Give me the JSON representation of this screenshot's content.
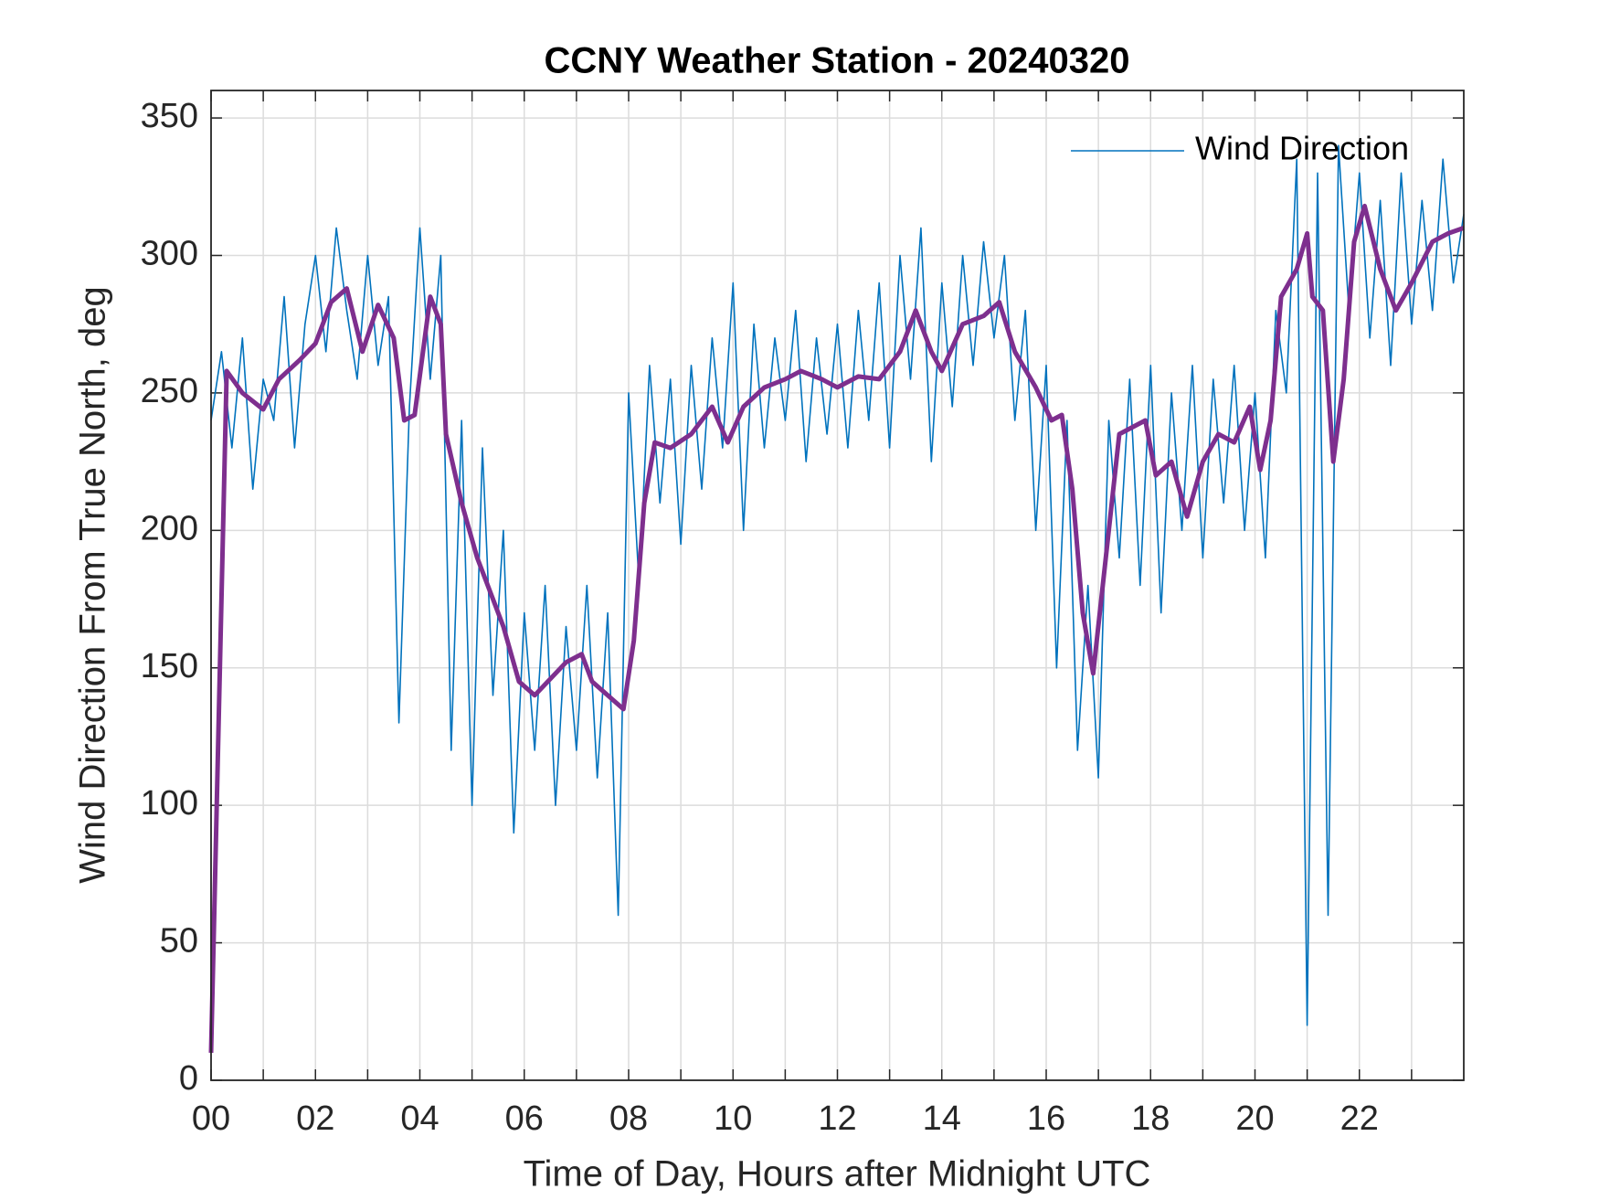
{
  "chart_data": {
    "type": "line",
    "title": "CCNY Weather Station - 20240320",
    "x_label": "Time of Day, Hours after Midnight UTC",
    "y_label": "Wind Direction From True North, deg",
    "xlim": [
      0,
      24
    ],
    "ylim": [
      0,
      360
    ],
    "xticks": [
      {
        "value": 0,
        "label": "00"
      },
      {
        "value": 2,
        "label": "02"
      },
      {
        "value": 4,
        "label": "04"
      },
      {
        "value": 6,
        "label": "06"
      },
      {
        "value": 8,
        "label": "08"
      },
      {
        "value": 10,
        "label": "10"
      },
      {
        "value": 12,
        "label": "12"
      },
      {
        "value": 14,
        "label": "14"
      },
      {
        "value": 16,
        "label": "16"
      },
      {
        "value": 18,
        "label": "18"
      },
      {
        "value": 20,
        "label": "20"
      },
      {
        "value": 22,
        "label": "22"
      }
    ],
    "xminorticks": [
      1,
      3,
      5,
      7,
      9,
      11,
      13,
      15,
      17,
      19,
      21,
      23
    ],
    "yticks": [
      0,
      50,
      100,
      150,
      200,
      250,
      300,
      350
    ],
    "grid": true,
    "legend": "upper right",
    "series": [
      {
        "name": "Wind Direction",
        "color": "#0072bd",
        "width": 1.6,
        "x": [
          0,
          0.2,
          0.4,
          0.6,
          0.8,
          1,
          1.2,
          1.4,
          1.6,
          1.8,
          2,
          2.2,
          2.4,
          2.6,
          2.8,
          3,
          3.2,
          3.4,
          3.6,
          3.8,
          4,
          4.2,
          4.4,
          4.6,
          4.8,
          5,
          5.2,
          5.4,
          5.6,
          5.8,
          6,
          6.2,
          6.4,
          6.6,
          6.8,
          7,
          7.2,
          7.4,
          7.6,
          7.8,
          8,
          8.2,
          8.4,
          8.6,
          8.8,
          9,
          9.2,
          9.4,
          9.6,
          9.8,
          10,
          10.2,
          10.4,
          10.6,
          10.8,
          11,
          11.2,
          11.4,
          11.6,
          11.8,
          12,
          12.2,
          12.4,
          12.6,
          12.8,
          13,
          13.2,
          13.4,
          13.6,
          13.8,
          14,
          14.2,
          14.4,
          14.6,
          14.8,
          15,
          15.2,
          15.4,
          15.6,
          15.8,
          16,
          16.2,
          16.4,
          16.6,
          16.8,
          17,
          17.2,
          17.4,
          17.6,
          17.8,
          18,
          18.2,
          18.4,
          18.6,
          18.8,
          19,
          19.2,
          19.4,
          19.6,
          19.8,
          20,
          20.2,
          20.4,
          20.6,
          20.8,
          21,
          21.2,
          21.4,
          21.6,
          21.8,
          22,
          22.2,
          22.4,
          22.6,
          22.8,
          23,
          23.2,
          23.4,
          23.6,
          23.8,
          24
        ],
        "values": [
          240,
          265,
          230,
          270,
          215,
          255,
          240,
          285,
          230,
          275,
          300,
          265,
          310,
          280,
          255,
          300,
          260,
          285,
          130,
          245,
          310,
          255,
          300,
          120,
          240,
          100,
          230,
          140,
          200,
          90,
          170,
          120,
          180,
          100,
          165,
          120,
          180,
          110,
          170,
          60,
          250,
          180,
          260,
          210,
          255,
          195,
          260,
          215,
          270,
          230,
          290,
          200,
          275,
          230,
          270,
          240,
          280,
          225,
          270,
          235,
          275,
          230,
          280,
          240,
          290,
          230,
          300,
          255,
          310,
          225,
          290,
          245,
          300,
          260,
          305,
          270,
          300,
          240,
          280,
          200,
          260,
          150,
          240,
          120,
          180,
          110,
          240,
          190,
          255,
          180,
          260,
          170,
          250,
          200,
          260,
          190,
          255,
          210,
          260,
          200,
          250,
          190,
          280,
          250,
          335,
          20,
          330,
          60,
          340,
          280,
          330,
          270,
          320,
          260,
          330,
          275,
          320,
          280,
          335,
          290,
          315
        ]
      },
      {
        "color": "#7e2f8e",
        "width": 5,
        "x": [
          0,
          0.3,
          0.6,
          1.0,
          1.3,
          1.7,
          2.0,
          2.3,
          2.6,
          2.9,
          3.2,
          3.5,
          3.7,
          3.9,
          4.2,
          4.4,
          4.5,
          4.8,
          5.1,
          5.4,
          5.6,
          5.9,
          6.2,
          6.6,
          6.8,
          7.1,
          7.3,
          7.6,
          7.9,
          8.1,
          8.3,
          8.5,
          8.8,
          9.2,
          9.6,
          9.9,
          10.2,
          10.6,
          11.0,
          11.3,
          11.7,
          12.0,
          12.4,
          12.8,
          13.2,
          13.5,
          13.8,
          14.0,
          14.4,
          14.8,
          15.1,
          15.4,
          15.8,
          16.1,
          16.3,
          16.5,
          16.7,
          16.9,
          17.2,
          17.4,
          17.7,
          17.9,
          18.1,
          18.4,
          18.7,
          19.0,
          19.3,
          19.6,
          19.9,
          20.1,
          20.3,
          20.5,
          20.8,
          21.0,
          21.1,
          21.3,
          21.5,
          21.7,
          21.9,
          22.1,
          22.4,
          22.7,
          23.0,
          23.4,
          23.7,
          24.0
        ],
        "values": [
          10,
          258,
          250,
          244,
          255,
          262,
          268,
          283,
          288,
          265,
          282,
          270,
          240,
          242,
          285,
          275,
          235,
          210,
          190,
          175,
          165,
          145,
          140,
          148,
          152,
          155,
          145,
          140,
          135,
          160,
          210,
          232,
          230,
          235,
          245,
          232,
          245,
          252,
          255,
          258,
          255,
          252,
          256,
          255,
          265,
          280,
          265,
          258,
          275,
          278,
          283,
          265,
          252,
          240,
          242,
          215,
          170,
          148,
          200,
          235,
          238,
          240,
          220,
          225,
          205,
          225,
          235,
          232,
          245,
          222,
          240,
          285,
          295,
          308,
          285,
          280,
          225,
          255,
          305,
          318,
          295,
          280,
          290,
          305,
          308,
          310
        ]
      }
    ]
  }
}
